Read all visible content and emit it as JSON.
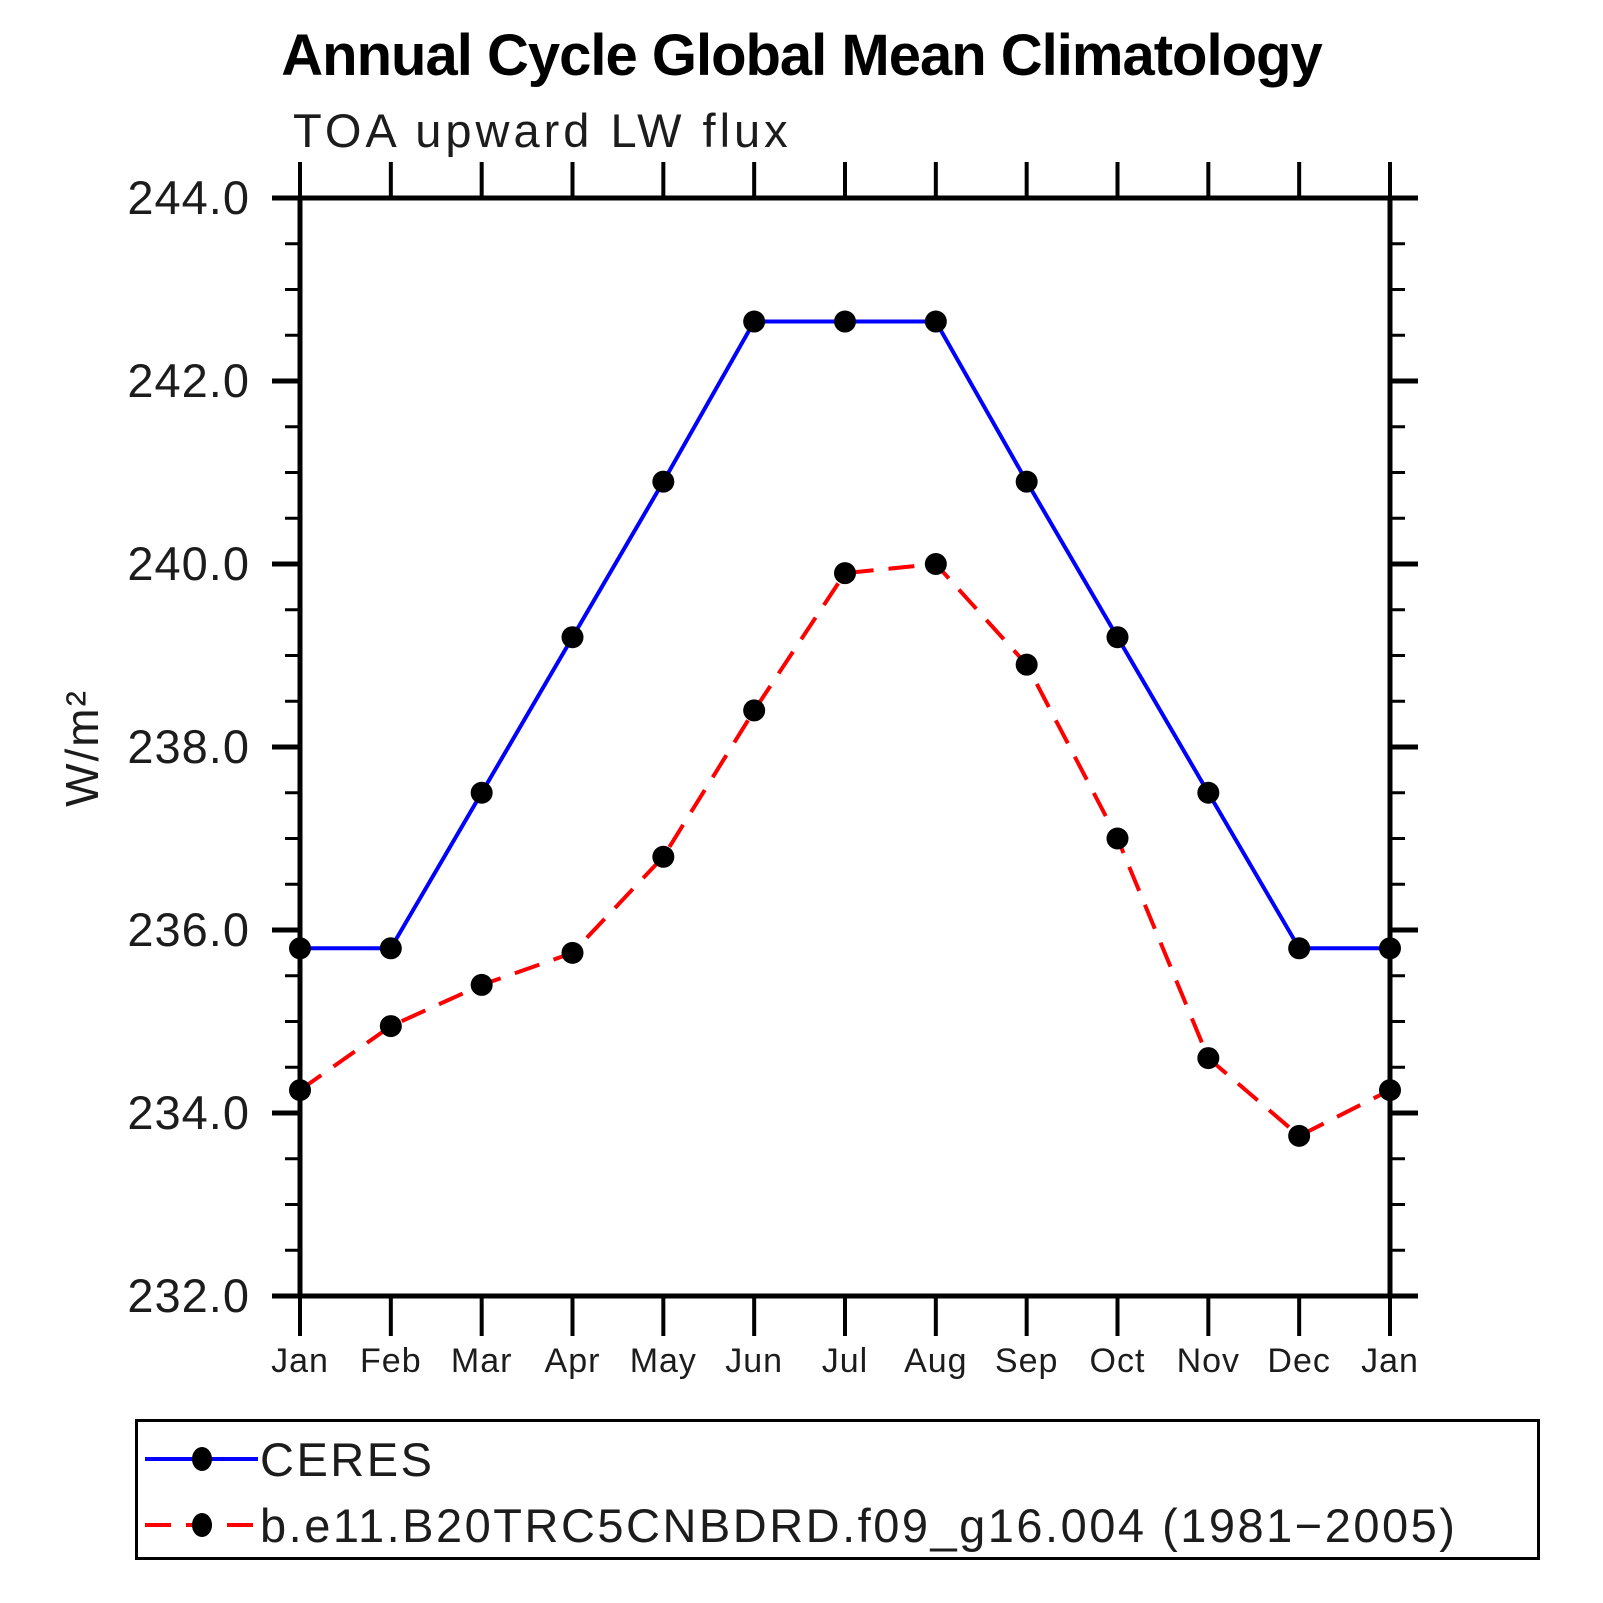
{
  "title": "Annual Cycle Global Mean Climatology",
  "subtitle": "TOA upward LW flux",
  "y_axis_title": "W/m²",
  "chart_data": {
    "type": "line",
    "title": "Annual Cycle Global Mean Climatology",
    "subtitle": "TOA upward LW flux",
    "ylabel": "W/m²",
    "xlabel": "",
    "x_categories": [
      "Jan",
      "Feb",
      "Mar",
      "Apr",
      "May",
      "Jun",
      "Jul",
      "Aug",
      "Sep",
      "Oct",
      "Nov",
      "Dec",
      "Jan"
    ],
    "ylim": [
      232.0,
      244.0
    ],
    "y_major_tick_step": 2.0,
    "y_minor_tick_step": 0.5,
    "y_tick_labels": [
      "244.0",
      "242.0",
      "240.0",
      "238.0",
      "236.0",
      "234.0",
      "232.0"
    ],
    "grid": false,
    "legend_position": "bottom-left-box",
    "axis_color": "#000000",
    "series": [
      {
        "name": "CERES",
        "line_color": "#0000ff",
        "line_style": "solid",
        "marker": "filled-circle",
        "marker_color": "#000000",
        "values": [
          235.8,
          235.8,
          237.5,
          239.2,
          240.9,
          242.65,
          242.65,
          242.65,
          240.9,
          239.2,
          237.5,
          235.8,
          235.8
        ]
      },
      {
        "name": "b.e11.B20TRC5CNBDRD.f09_g16.004 (1981−2005)",
        "line_color": "#ff0000",
        "line_style": "dashed",
        "marker": "filled-circle",
        "marker_color": "#000000",
        "values": [
          234.25,
          234.95,
          235.4,
          235.75,
          236.8,
          238.4,
          239.9,
          240.0,
          238.9,
          237.0,
          234.6,
          233.75,
          234.25
        ]
      }
    ]
  }
}
